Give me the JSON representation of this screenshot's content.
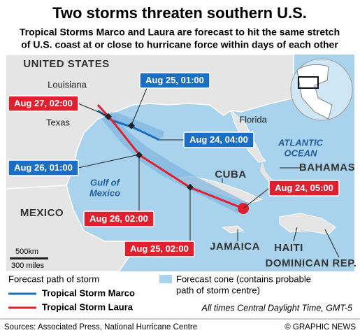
{
  "title": "Two storms threaten southern U.S.",
  "subtitle": [
    "Tropical Storms Marco and Laura are forecast to hit the same stretch",
    "of U.S. coast at or close to hurricane force within days of each other"
  ],
  "map": {
    "labels": {
      "united_states": "UNITED STATES",
      "louisiana": "Louisiana",
      "texas": "Texas",
      "florida": "Florida",
      "atlantic": [
        "ATLANTIC",
        "OCEAN"
      ],
      "cuba": "CUBA",
      "bahamas": "BAHAMAS",
      "gulf": [
        "Gulf of",
        "Mexico"
      ],
      "mexico": "MEXICO",
      "jamaica": "JAMAICA",
      "haiti": "HAITI",
      "dominican": "DOMINICAN REP."
    },
    "scale": [
      "500km",
      "300 miles"
    ],
    "marco_callouts": [
      "Aug 25, 01:00",
      "Aug 24, 04:00",
      "Aug 26, 01:00"
    ],
    "laura_callouts": [
      "Aug 27, 02:00",
      "Aug 24, 05:00",
      "Aug 26, 02:00",
      "Aug 25, 02:00"
    ]
  },
  "legend": {
    "heading": "Forecast path of storm",
    "marco": "Tropical Storm Marco",
    "laura": "Tropical Storm Laura",
    "cone": [
      "Forecast cone (contains probable",
      "path of storm centre)"
    ],
    "note": "All times Central Daylight Time, GMT-5"
  },
  "footer": {
    "sources": "Sources: Associated Press, National Hurricane Centre",
    "credit": "© GRAPHIC NEWS"
  }
}
